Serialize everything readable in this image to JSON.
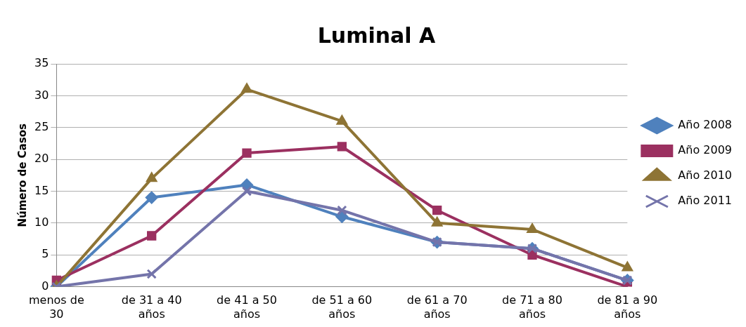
{
  "chart_data": {
    "type": "line",
    "title": "Luminal A",
    "ylabel": "Número de Casos",
    "categories": [
      "menos de 30",
      "de 31 a 40 años",
      "de 41 a 50 años",
      "de 51 a 60 años",
      "de 61 a 70 años",
      "de 71 a 80 años",
      "de 81 a 90 años"
    ],
    "series": [
      {
        "name": "Año 2008",
        "color": "#4f81bd",
        "marker": "diamond",
        "values": [
          0,
          14,
          16,
          11,
          7,
          6,
          1
        ]
      },
      {
        "name": "Año 2009",
        "color": "#9b3060",
        "marker": "square",
        "values": [
          1,
          8,
          21,
          22,
          12,
          5,
          0
        ]
      },
      {
        "name": "Año 2010",
        "color": "#8e7435",
        "marker": "triangle",
        "values": [
          0,
          17,
          31,
          26,
          10,
          9,
          3
        ]
      },
      {
        "name": "Año 2011",
        "color": "#7474aa",
        "marker": "cross",
        "values": [
          0,
          2,
          15,
          12,
          7,
          6,
          1
        ]
      }
    ],
    "ylim": [
      0,
      35
    ],
    "yticks": [
      0,
      5,
      10,
      15,
      20,
      25,
      30,
      35
    ],
    "grid": "y",
    "legend": "right",
    "line_style": "solid"
  }
}
